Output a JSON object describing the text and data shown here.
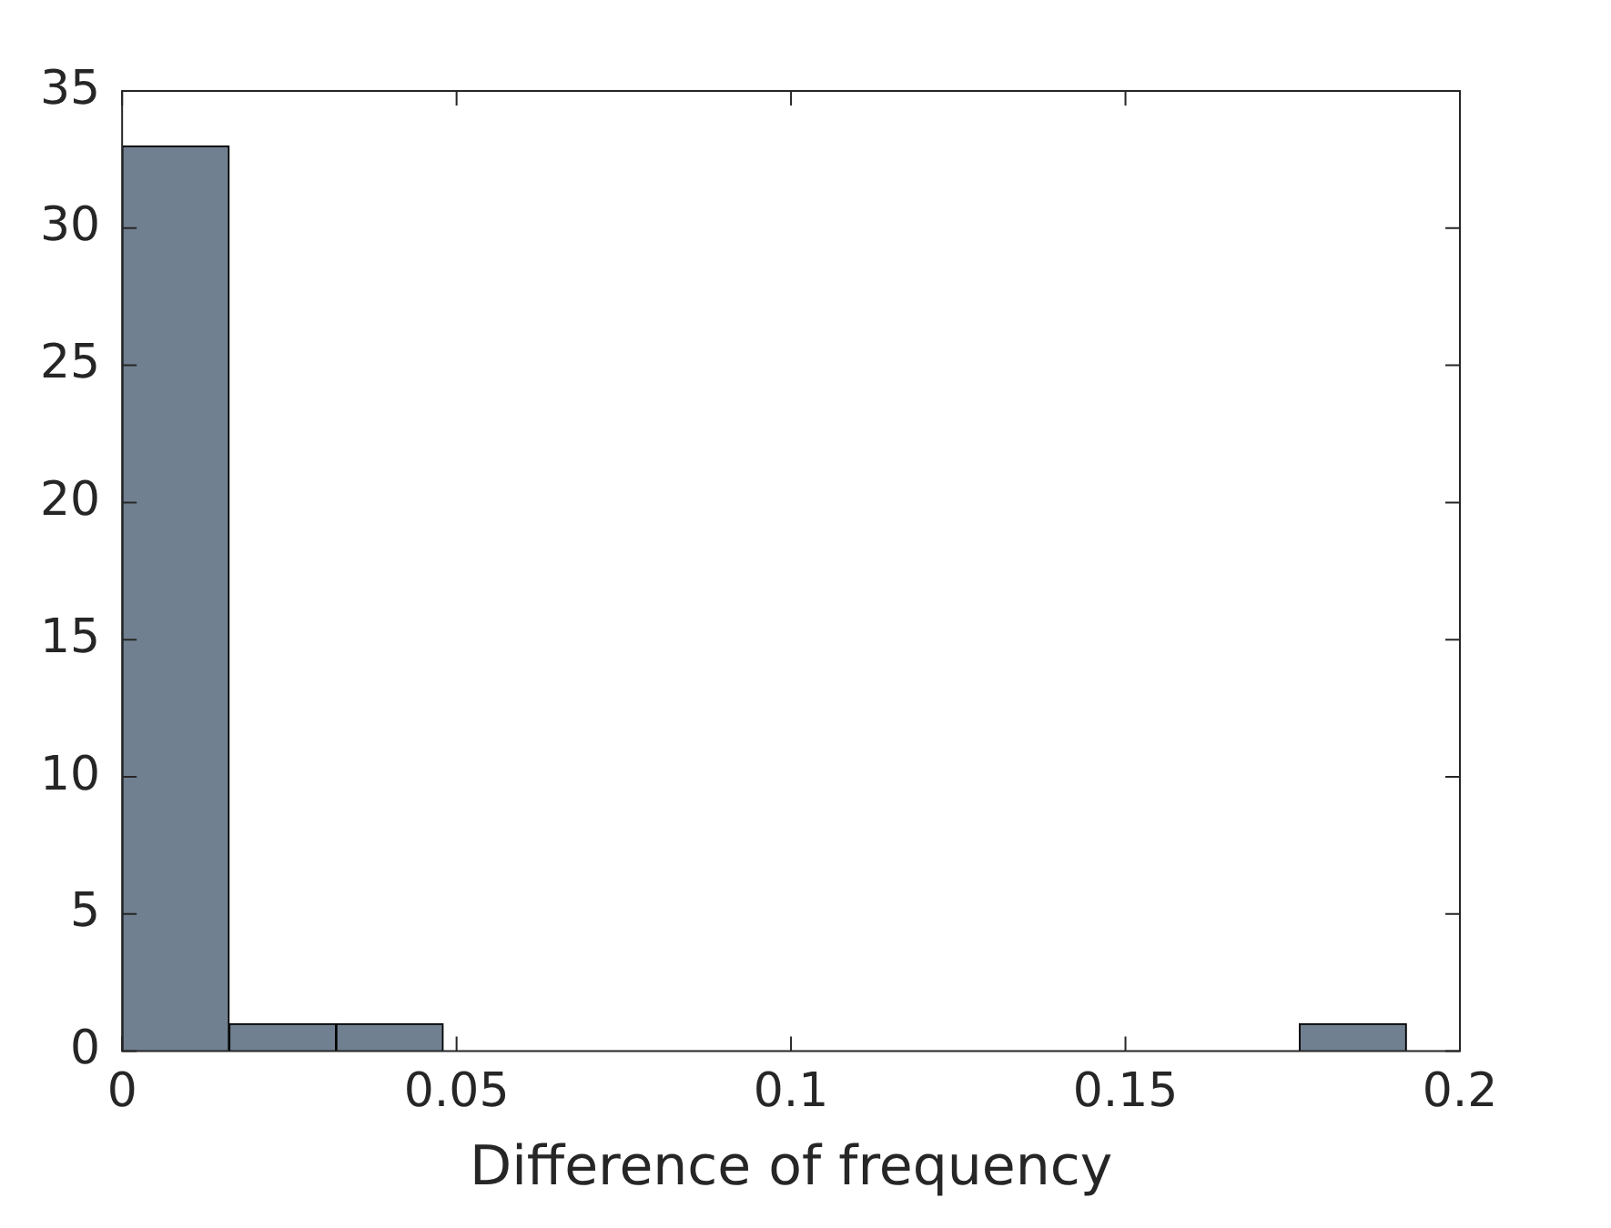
{
  "chart_data": {
    "type": "histogram",
    "xlabel": "Difference of frequency",
    "bins": [
      0,
      0.016,
      0.032,
      0.048,
      0.064,
      0.08,
      0.096,
      0.112,
      0.128,
      0.144,
      0.16,
      0.176,
      0.192
    ],
    "values": [
      33,
      1,
      1,
      0,
      0,
      0,
      0,
      0,
      0,
      0,
      0,
      1
    ],
    "color": "#708090",
    "xlim": [
      0,
      0.2
    ],
    "xticks": [
      0,
      0.05,
      0.1,
      0.15,
      0.2
    ],
    "ylim": [
      0,
      35
    ],
    "yticks": [
      0,
      5,
      10,
      15,
      20,
      25,
      30,
      35
    ],
    "grid": false
  }
}
